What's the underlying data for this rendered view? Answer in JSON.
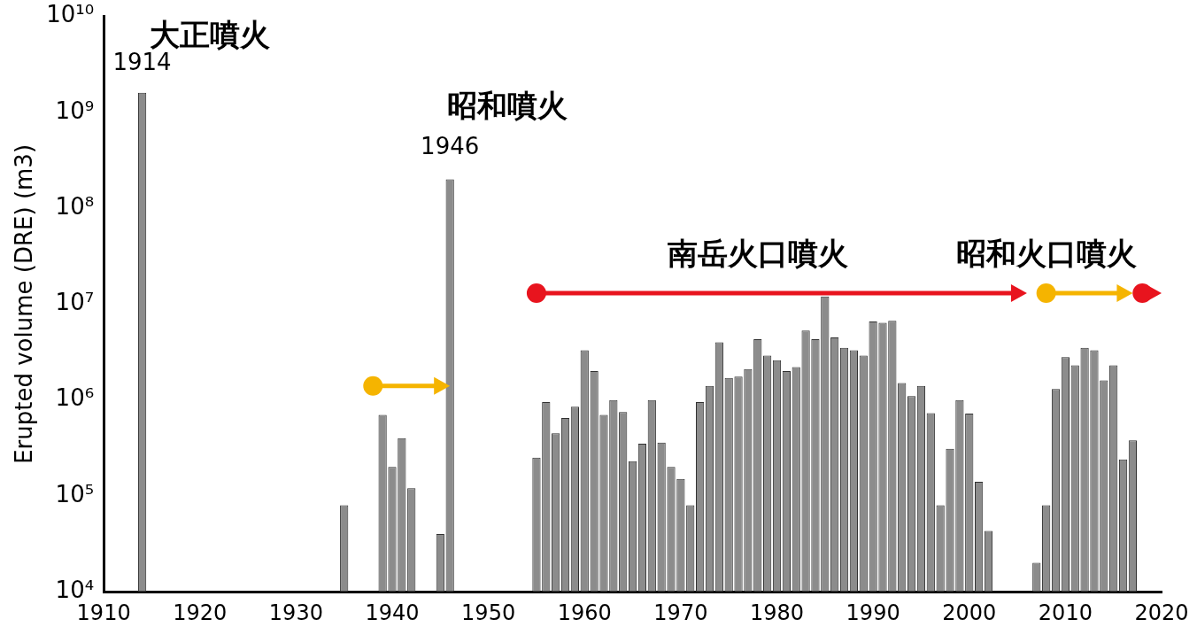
{
  "chart_data": {
    "type": "bar",
    "y_label": "Erupted volume (DRE) (m3)",
    "x": [
      1914,
      1935,
      1939,
      1940,
      1941,
      1942,
      1945,
      1946,
      1955,
      1956,
      1957,
      1958,
      1959,
      1960,
      1961,
      1962,
      1963,
      1964,
      1965,
      1966,
      1967,
      1968,
      1969,
      1970,
      1971,
      1972,
      1973,
      1974,
      1975,
      1976,
      1977,
      1978,
      1979,
      1980,
      1981,
      1982,
      1983,
      1984,
      1985,
      1986,
      1987,
      1988,
      1989,
      1990,
      1991,
      1992,
      1993,
      1994,
      1995,
      1996,
      1997,
      1998,
      1999,
      2000,
      2001,
      2002,
      2007,
      2008,
      2009,
      2010,
      2011,
      2012,
      2013,
      2014,
      2015,
      2016,
      2017
    ],
    "values": [
      1600000000,
      80000,
      700000,
      200000,
      400000,
      120000,
      40000,
      200000000,
      250000,
      950000,
      450000,
      650000,
      850000,
      3300000,
      2000000,
      700000,
      1000000,
      750000,
      230000,
      350000,
      1000000,
      360000,
      200000,
      150000,
      80000,
      950000,
      1400000,
      4000000,
      1700000,
      1750000,
      2100000,
      4300000,
      2900000,
      2600000,
      2000000,
      2200000,
      5300000,
      4300000,
      12000000,
      4500000,
      3500000,
      3300000,
      2900000,
      6600000,
      6400000,
      6700000,
      1500000,
      1100000,
      1400000,
      730000,
      80000,
      310000,
      1000000,
      720000,
      140000,
      43000,
      20000,
      80000,
      1300000,
      2800000,
      2300000,
      3500000,
      3300000,
      1600000,
      2300000,
      240000,
      380000
    ],
    "color": "#8c8c8c",
    "log": "y",
    "grid": false,
    "xlim": [
      1910,
      2020
    ],
    "xticks": [
      1910,
      1920,
      1930,
      1940,
      1950,
      1960,
      1970,
      1980,
      1990,
      2000,
      2010,
      2020
    ],
    "ylim": [
      10000,
      10000000000
    ],
    "yticks": [
      {
        "value": 10000,
        "label": "10⁴"
      },
      {
        "value": 100000,
        "label": "10⁵"
      },
      {
        "value": 1000000,
        "label": "10⁶"
      },
      {
        "value": 10000000,
        "label": "10⁷"
      },
      {
        "value": 100000000,
        "label": "10⁸"
      },
      {
        "value": 1000000000,
        "label": "10⁹"
      },
      {
        "value": 10000000000,
        "label": "10¹⁰"
      }
    ],
    "annotations": [
      {
        "text": "大正噴火",
        "x": 1921,
        "y": 6000000000
      },
      {
        "text": "1914",
        "x": 1914,
        "y": 3200000000
      },
      {
        "text": "昭和噴火",
        "x": 1952,
        "y": 1100000000
      },
      {
        "text": "1946",
        "x": 1946,
        "y": 420000000
      },
      {
        "text": "南岳火口噴火",
        "x": 1978,
        "y": 32000000
      },
      {
        "text": "昭和火口噴火",
        "x": 2008,
        "y": 32000000
      }
    ],
    "periods": [
      {
        "start": 1938,
        "end": 1946,
        "y": 1400000,
        "color": "#f5b400"
      },
      {
        "start": 1955,
        "end": 2006,
        "y": 13000000,
        "color": "#e8141e"
      },
      {
        "start": 2008,
        "end": 2017,
        "y": 13000000,
        "color": "#f5b400"
      },
      {
        "start": 2018,
        "end": 2020,
        "y": 13000000,
        "color": "#e8141e"
      }
    ]
  }
}
